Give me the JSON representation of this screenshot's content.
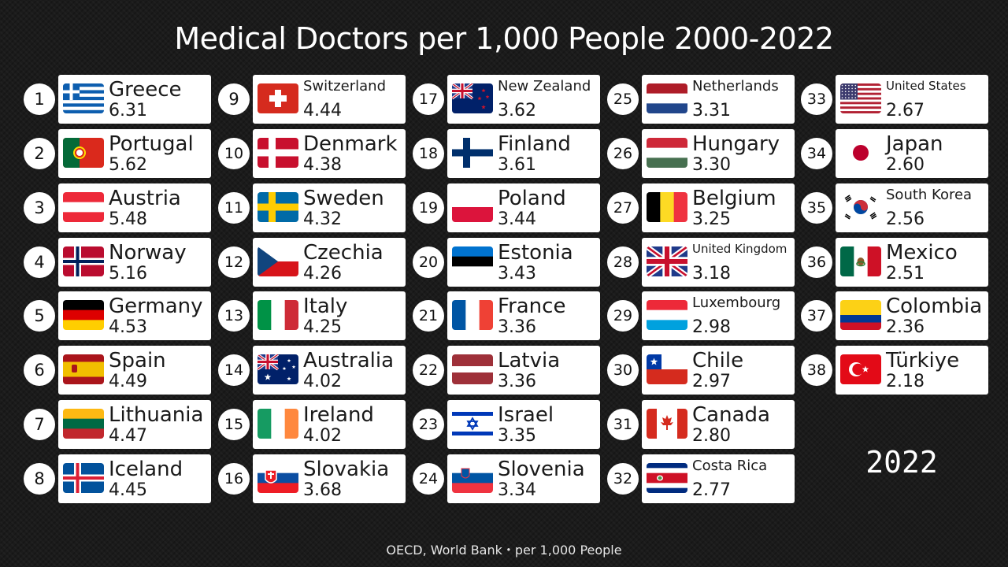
{
  "title": "Medical Doctors per 1,000 People 2000-2022",
  "year": "2022",
  "source": "OECD, World Bank・per 1,000 People",
  "chart_data": {
    "type": "table",
    "title": "Medical Doctors per 1,000 People 2000-2022",
    "columns": [
      "rank",
      "country",
      "value"
    ],
    "rows": [
      {
        "rank": 1,
        "country": "Greece",
        "value": "6.31",
        "flag": "greece-flag"
      },
      {
        "rank": 2,
        "country": "Portugal",
        "value": "5.62",
        "flag": "portugal-flag"
      },
      {
        "rank": 3,
        "country": "Austria",
        "value": "5.48",
        "flag": "austria-flag"
      },
      {
        "rank": 4,
        "country": "Norway",
        "value": "5.16",
        "flag": "norway-flag"
      },
      {
        "rank": 5,
        "country": "Germany",
        "value": "4.53",
        "flag": "germany-flag"
      },
      {
        "rank": 6,
        "country": "Spain",
        "value": "4.49",
        "flag": "spain-flag"
      },
      {
        "rank": 7,
        "country": "Lithuania",
        "value": "4.47",
        "flag": "lithuania-flag"
      },
      {
        "rank": 8,
        "country": "Iceland",
        "value": "4.45",
        "flag": "iceland-flag"
      },
      {
        "rank": 9,
        "country": "Switzerland",
        "value": "4.44",
        "flag": "switzerland-flag"
      },
      {
        "rank": 10,
        "country": "Denmark",
        "value": "4.38",
        "flag": "denmark-flag"
      },
      {
        "rank": 11,
        "country": "Sweden",
        "value": "4.32",
        "flag": "sweden-flag"
      },
      {
        "rank": 12,
        "country": "Czechia",
        "value": "4.26",
        "flag": "czechia-flag"
      },
      {
        "rank": 13,
        "country": "Italy",
        "value": "4.25",
        "flag": "italy-flag"
      },
      {
        "rank": 14,
        "country": "Australia",
        "value": "4.02",
        "flag": "australia-flag"
      },
      {
        "rank": 15,
        "country": "Ireland",
        "value": "4.02",
        "flag": "ireland-flag"
      },
      {
        "rank": 16,
        "country": "Slovakia",
        "value": "3.68",
        "flag": "slovakia-flag"
      },
      {
        "rank": 17,
        "country": "New Zealand",
        "value": "3.62",
        "flag": "new-zealand-flag"
      },
      {
        "rank": 18,
        "country": "Finland",
        "value": "3.61",
        "flag": "finland-flag"
      },
      {
        "rank": 19,
        "country": "Poland",
        "value": "3.44",
        "flag": "poland-flag"
      },
      {
        "rank": 20,
        "country": "Estonia",
        "value": "3.43",
        "flag": "estonia-flag"
      },
      {
        "rank": 21,
        "country": "France",
        "value": "3.36",
        "flag": "france-flag"
      },
      {
        "rank": 22,
        "country": "Latvia",
        "value": "3.36",
        "flag": "latvia-flag"
      },
      {
        "rank": 23,
        "country": "Israel",
        "value": "3.35",
        "flag": "israel-flag"
      },
      {
        "rank": 24,
        "country": "Slovenia",
        "value": "3.34",
        "flag": "slovenia-flag"
      },
      {
        "rank": 25,
        "country": "Netherlands",
        "value": "3.31",
        "flag": "netherlands-flag"
      },
      {
        "rank": 26,
        "country": "Hungary",
        "value": "3.30",
        "flag": "hungary-flag"
      },
      {
        "rank": 27,
        "country": "Belgium",
        "value": "3.25",
        "flag": "belgium-flag"
      },
      {
        "rank": 28,
        "country": "United Kingdom",
        "value": "3.18",
        "flag": "united-kingdom-flag"
      },
      {
        "rank": 29,
        "country": "Luxembourg",
        "value": "2.98",
        "flag": "luxembourg-flag"
      },
      {
        "rank": 30,
        "country": "Chile",
        "value": "2.97",
        "flag": "chile-flag"
      },
      {
        "rank": 31,
        "country": "Canada",
        "value": "2.80",
        "flag": "canada-flag"
      },
      {
        "rank": 32,
        "country": "Costa Rica",
        "value": "2.77",
        "flag": "costa-rica-flag"
      },
      {
        "rank": 33,
        "country": "United States",
        "value": "2.67",
        "flag": "united-states-flag"
      },
      {
        "rank": 34,
        "country": "Japan",
        "value": "2.60",
        "flag": "japan-flag"
      },
      {
        "rank": 35,
        "country": "South Korea",
        "value": "2.56",
        "flag": "south-korea-flag"
      },
      {
        "rank": 36,
        "country": "Mexico",
        "value": "2.51",
        "flag": "mexico-flag"
      },
      {
        "rank": 37,
        "country": "Colombia",
        "value": "2.36",
        "flag": "colombia-flag"
      },
      {
        "rank": 38,
        "country": "Türkiye",
        "value": "2.18",
        "flag": "turkiye-flag"
      }
    ]
  }
}
